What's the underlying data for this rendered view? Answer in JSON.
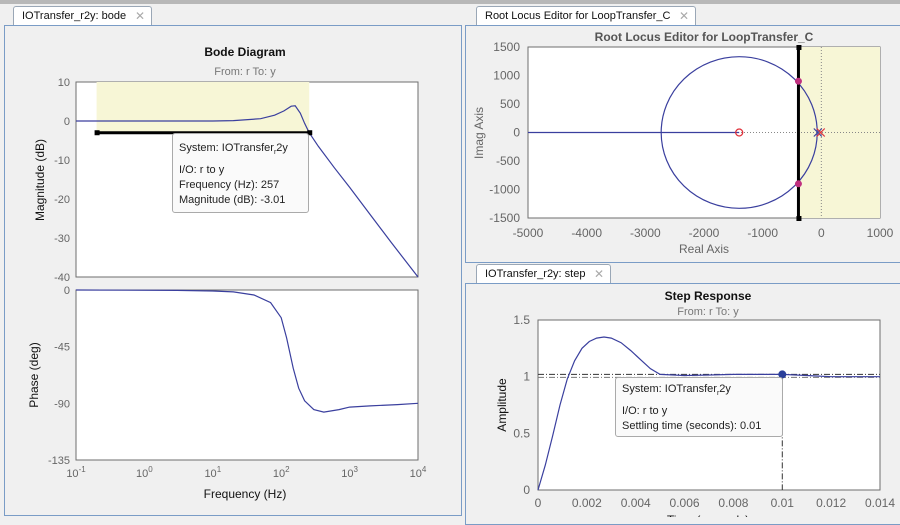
{
  "colors": {
    "curve": "#3a3f9e",
    "band": "#f7f6d6",
    "marker": "#c0307f",
    "zero": "#e0303a",
    "axis": "#6e6e6e"
  },
  "bode_panel": {
    "tab_label": "IOTransfer_r2y: bode",
    "close_icon": "close-icon",
    "tooltip": {
      "system_prefix": "System: IOTransfer",
      "system_sub": "r",
      "system_suffix": "2y",
      "io": "I/O: r to y",
      "frequency": "Frequency (Hz): 257",
      "magnitude": "Magnitude (dB): -3.01"
    }
  },
  "rlocus_panel": {
    "tab_label": "Root Locus Editor for LoopTransfer_C",
    "close_icon": "close-icon"
  },
  "step_panel": {
    "tab_label": "IOTransfer_r2y: step",
    "close_icon": "close-icon",
    "tooltip": {
      "system_prefix": "System: IOTransfer",
      "system_sub": "r",
      "system_suffix": "2y",
      "io": "I/O: r to y",
      "settling": "Settling time (seconds): 0.01"
    }
  },
  "chart_data": [
    {
      "type": "line",
      "id": "bode",
      "title": "Bode Diagram",
      "subtitle": "From: r  To: y",
      "xlabel": "Frequency  (Hz)",
      "xscale": "log",
      "xlim": [
        0.1,
        10000
      ],
      "xticks": [
        0.1,
        1,
        10,
        100,
        1000,
        10000
      ],
      "xtick_labels": [
        [
          "10",
          "-1"
        ],
        [
          "10",
          "0"
        ],
        [
          "10",
          "1"
        ],
        [
          "10",
          "2"
        ],
        [
          "10",
          "3"
        ],
        [
          "10",
          "4"
        ]
      ],
      "magnitude": {
        "ylabel": "Magnitude (dB)",
        "ylim": [
          -40,
          10
        ],
        "yticks": [
          10,
          0,
          -10,
          -20,
          -30,
          -40
        ],
        "x": [
          0.1,
          10,
          20,
          50,
          80,
          110,
          140,
          160,
          190,
          220,
          257,
          350,
          600,
          1000,
          2000,
          4000,
          10000
        ],
        "y": [
          0,
          0,
          0.1,
          0.6,
          1.5,
          2.6,
          3.8,
          3.9,
          2,
          -0.6,
          -3.01,
          -6.5,
          -12,
          -17,
          -24,
          -31,
          -40
        ],
        "bandwidth_marker": {
          "x_from": 0.2,
          "x_to": 257,
          "y": -3.01
        }
      },
      "phase": {
        "ylabel": "Phase (deg)",
        "ylim": [
          -135,
          0
        ],
        "yticks": [
          0,
          -45,
          -90,
          -135
        ],
        "x": [
          0.1,
          3,
          10,
          20,
          40,
          70,
          100,
          120,
          150,
          180,
          220,
          300,
          420,
          700,
          1000,
          2000,
          5000,
          10000
        ],
        "y": [
          0,
          -0.3,
          -0.8,
          -1.5,
          -4,
          -10,
          -22,
          -38,
          -62,
          -78,
          -88,
          -95,
          -97,
          -95,
          -93,
          -92,
          -91,
          -90
        ]
      }
    },
    {
      "type": "scatter",
      "id": "rlocus",
      "title": "Root Locus Editor for LoopTransfer_C",
      "xlabel": "Real Axis",
      "ylabel": "Imag Axis",
      "xlim": [
        -5000,
        1000
      ],
      "ylim": [
        -1500,
        1500
      ],
      "xticks": [
        -5000,
        -4000,
        -3000,
        -2000,
        -1000,
        0,
        1000
      ],
      "yticks": [
        1500,
        1000,
        500,
        0,
        -500,
        -1000,
        -1500
      ],
      "locus_circle": {
        "center": -1400,
        "radius": 1330
      },
      "real_axis_branch": [
        -5000,
        -1400
      ],
      "zeros": [
        [
          -1400,
          0
        ]
      ],
      "poles": [
        [
          -60,
          0
        ],
        [
          -10,
          0
        ]
      ],
      "closed_loop_poles": [
        [
          -390,
          900
        ],
        [
          -390,
          -900
        ]
      ],
      "damping_boundary_real": -390
    },
    {
      "type": "line",
      "id": "step",
      "title": "Step Response",
      "subtitle": "From: r  To: y",
      "xlabel": "Time (seconds)",
      "ylabel": "Amplitude",
      "xlim": [
        0,
        0.014
      ],
      "ylim": [
        0,
        1.5
      ],
      "xticks": [
        0,
        0.002,
        0.004,
        0.006,
        0.008,
        0.01,
        0.012,
        0.014
      ],
      "xtick_labels": [
        "0",
        "0.002",
        "0.004",
        "0.006",
        "0.008",
        "0.01",
        "0.012",
        "0.014"
      ],
      "yticks": [
        0,
        0.5,
        1,
        1.5
      ],
      "ytick_labels": [
        "0",
        "0.5",
        "1",
        "1.5"
      ],
      "x": [
        0,
        0.0003,
        0.0006,
        0.0009,
        0.0012,
        0.0015,
        0.0018,
        0.0021,
        0.0024,
        0.0027,
        0.003,
        0.0034,
        0.0038,
        0.0042,
        0.0046,
        0.005,
        0.006,
        0.007,
        0.008,
        0.009,
        0.01,
        0.011,
        0.012,
        0.013,
        0.014
      ],
      "y": [
        0,
        0.22,
        0.48,
        0.75,
        0.98,
        1.14,
        1.25,
        1.31,
        1.34,
        1.35,
        1.34,
        1.3,
        1.23,
        1.15,
        1.07,
        1.02,
        1.01,
        1.015,
        1.02,
        1.02,
        1.02,
        1.01,
        1.0,
        1.0,
        1.0
      ],
      "settling": {
        "t": 0.01,
        "y": 1.02
      },
      "settling_band": 1.02
    }
  ]
}
